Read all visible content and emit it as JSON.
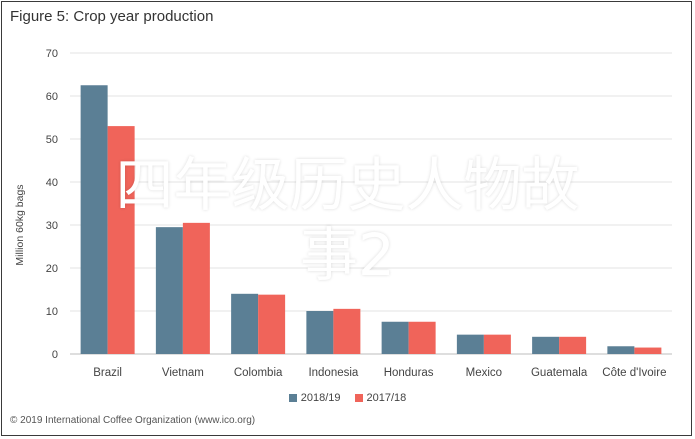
{
  "chart_data": {
    "type": "bar",
    "title": "Figure 5: Crop year production",
    "ylabel": "Million 60kg bags",
    "xlabel": "",
    "ylim": [
      0,
      70
    ],
    "yticks": [
      0,
      10,
      20,
      30,
      40,
      50,
      60,
      70
    ],
    "grid": true,
    "legend_position": "bottom",
    "categories": [
      "Brazil",
      "Vietnam",
      "Colombia",
      "Indonesia",
      "Honduras",
      "Mexico",
      "Guatemala",
      "Côte d'Ivoire"
    ],
    "series": [
      {
        "name": "2018/19",
        "color": "#5b7f95",
        "values": [
          62.5,
          29.5,
          14,
          10,
          7.5,
          4.5,
          4,
          1.8
        ]
      },
      {
        "name": "2017/18",
        "color": "#f0645a",
        "values": [
          53,
          30.5,
          13.8,
          10.5,
          7.5,
          4.5,
          4,
          1.5
        ]
      }
    ]
  },
  "footer": "© 2019 International Coffee Organization (www.ico.org)",
  "overlay": {
    "line1": "四年级历史人物故",
    "line2": "事2",
    "color": "#ffffff"
  }
}
